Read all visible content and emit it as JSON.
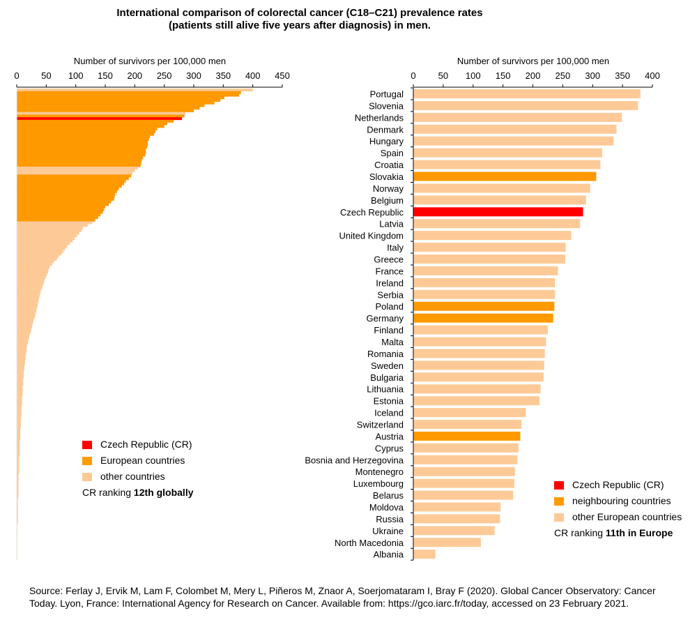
{
  "title": {
    "line1": "International comparison of colorectal cancer (C18–C21) prevalence rates",
    "line2": "(patients still alive five years after diagnosis) in men."
  },
  "colors": {
    "cr": "#ff0000",
    "highlight": "#ff9900",
    "other": "#fdca97"
  },
  "legend_left": {
    "cr": "Czech Republic (CR)",
    "european": "European countries",
    "other": "other countries",
    "rank_prefix": "CR ranking ",
    "rank_bold": "12th globally"
  },
  "legend_right": {
    "cr": "Czech Republic (CR)",
    "neighbours": "neighbouring countries",
    "other": "other European countries",
    "rank_prefix": "CR ranking ",
    "rank_bold": "11th in Europe"
  },
  "source": "Source: Ferlay J, Ervik M, Lam F, Colombet M, Mery L, Piñeros M, Znaor A, Soerjomataram I, Bray F (2020). Global Cancer Observatory: Cancer Today. Lyon, France: International Agency for Research on Cancer. Available from: https://gco.iarc.fr/today, accessed on 23 February 2021.",
  "chart_data": [
    {
      "type": "bar",
      "orientation": "horizontal",
      "xlabel": "Number of survivors per 100,000 men",
      "xlim": [
        0,
        450
      ],
      "xticks": [
        0,
        50,
        100,
        150,
        200,
        250,
        300,
        350,
        400,
        450
      ],
      "values": [
        400,
        380,
        377,
        352,
        345,
        335,
        318,
        310,
        300,
        286,
        284,
        280,
        266,
        255,
        250,
        238,
        235,
        233,
        226,
        224,
        222,
        222,
        221,
        219,
        219,
        218,
        214,
        212,
        211,
        210,
        205,
        200,
        196,
        194,
        190,
        185,
        182,
        178,
        173,
        170,
        167,
        166,
        165,
        160,
        156,
        150,
        148,
        146,
        142,
        138,
        133,
        128,
        120,
        112,
        110,
        106,
        102,
        98,
        95,
        90,
        86,
        82,
        79,
        76,
        71,
        68,
        63,
        60,
        56,
        54,
        53,
        51,
        49,
        47,
        46,
        44,
        43,
        41,
        40,
        39,
        38,
        37,
        36,
        35,
        34,
        33,
        32,
        31,
        29,
        28,
        27,
        26,
        25,
        24,
        22,
        21,
        20,
        19,
        18,
        17,
        17,
        16,
        15,
        15,
        14,
        14,
        13,
        13,
        12,
        12,
        12,
        11,
        11,
        11,
        10,
        10,
        10,
        10,
        9,
        9,
        9,
        9,
        8,
        8,
        8,
        8,
        7,
        7,
        7,
        7,
        6,
        6,
        6,
        6,
        6,
        5,
        5,
        5,
        5,
        5,
        5,
        4,
        4,
        4,
        4,
        4,
        4,
        4,
        3,
        3,
        3,
        3,
        3,
        3,
        3,
        3,
        3,
        2,
        2,
        2,
        2,
        2,
        2,
        2,
        2,
        2,
        2,
        1,
        1,
        1,
        1,
        1,
        1,
        1,
        1,
        1,
        1,
        1,
        1,
        1,
        1
      ],
      "cr_rank": 12,
      "european_ranks": [
        2,
        3,
        4,
        5,
        6,
        7,
        8,
        9,
        11,
        13,
        14,
        15,
        16,
        17,
        18,
        19,
        20,
        21,
        22,
        23,
        24,
        25,
        26,
        27,
        28,
        29,
        30,
        34,
        35,
        36,
        37,
        38,
        39,
        40,
        41,
        42,
        43,
        44,
        45,
        46,
        47,
        48,
        49,
        50,
        51
      ]
    },
    {
      "type": "bar",
      "orientation": "horizontal",
      "xlabel": "Number of survivors per 100,000 men",
      "xlim": [
        0,
        400
      ],
      "xticks": [
        0,
        50,
        100,
        150,
        200,
        250,
        300,
        350,
        400
      ],
      "categories": [
        "Portugal",
        "Slovenia",
        "Netherlands",
        "Denmark",
        "Hungary",
        "Spain",
        "Croatia",
        "Slovakia",
        "Norway",
        "Belgium",
        "Czech Republic",
        "Latvia",
        "United Kingdom",
        "Italy",
        "Greece",
        "France",
        "Ireland",
        "Serbia",
        "Poland",
        "Germany",
        "Finland",
        "Malta",
        "Romania",
        "Sweden",
        "Bulgaria",
        "Lithuania",
        "Estonia",
        "Iceland",
        "Switzerland",
        "Austria",
        "Cyprus",
        "Bosnia and Herzegovina",
        "Montenegro",
        "Luxembourg",
        "Belarus",
        "Moldova",
        "Russia",
        "Ukraine",
        "North Macedonia",
        "Albania"
      ],
      "values": [
        380,
        376,
        349,
        340,
        335,
        316,
        313,
        306,
        296,
        289,
        284,
        279,
        264,
        255,
        254,
        242,
        237,
        237,
        236,
        234,
        225,
        222,
        220,
        219,
        218,
        213,
        211,
        188,
        181,
        179,
        176,
        174,
        170,
        169,
        167,
        146,
        145,
        136,
        113,
        37
      ],
      "groups": [
        "other",
        "other",
        "other",
        "other",
        "other",
        "other",
        "other",
        "neighbour",
        "other",
        "other",
        "cr",
        "other",
        "other",
        "other",
        "other",
        "other",
        "other",
        "other",
        "neighbour",
        "neighbour",
        "other",
        "other",
        "other",
        "other",
        "other",
        "other",
        "other",
        "other",
        "other",
        "neighbour",
        "other",
        "other",
        "other",
        "other",
        "other",
        "other",
        "other",
        "other",
        "other",
        "other"
      ]
    }
  ]
}
